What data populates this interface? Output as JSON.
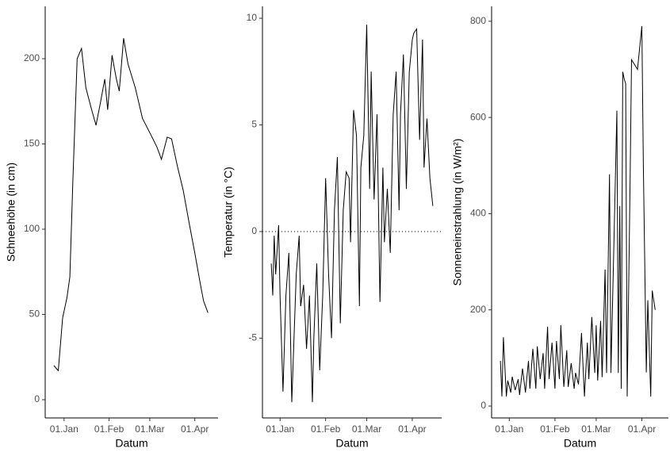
{
  "chart_data": [
    {
      "type": "line",
      "x_label": "Datum",
      "y_label": "Schneehöhe (in cm)",
      "color": "#000000",
      "xlim": [
        "12-19",
        "04-17"
      ],
      "xticks": [
        {
          "value": "01-01",
          "label": "01.Jan"
        },
        {
          "value": "02-01",
          "label": "01.Feb"
        },
        {
          "value": "03-01",
          "label": "01.Mar"
        },
        {
          "value": "04-01",
          "label": "01.Apr"
        }
      ],
      "ylim": [
        -10.7,
        230.7
      ],
      "yticks": [
        0,
        50,
        100,
        150,
        200
      ],
      "x": [
        "12-25",
        "12-28",
        "12-31",
        "01-03",
        "01-05",
        "01-07",
        "01-10",
        "01-13",
        "01-16",
        "01-20",
        "01-23",
        "01-26",
        "01-29",
        "01-31",
        "02-03",
        "02-06",
        "02-08",
        "02-11",
        "02-14",
        "02-19",
        "02-24",
        "03-02",
        "03-06",
        "03-09",
        "03-13",
        "03-16",
        "03-20",
        "03-24",
        "03-28",
        "04-01",
        "04-05",
        "04-07",
        "04-10"
      ],
      "values": [
        20,
        17,
        48,
        60,
        72,
        127,
        200,
        206,
        183,
        170,
        161,
        174,
        188,
        170,
        202,
        188,
        181,
        212,
        197,
        183,
        165,
        155,
        148,
        141,
        154,
        153,
        137,
        123,
        104,
        86,
        67,
        58,
        51
      ]
    },
    {
      "type": "line",
      "x_label": "Datum",
      "y_label": "Temperatur (in °C)",
      "color": "#000000",
      "hline": 0,
      "xlim": [
        "12-20",
        "04-21"
      ],
      "xticks": [
        {
          "value": "01-01",
          "label": "01.Jan"
        },
        {
          "value": "02-01",
          "label": "01.Feb"
        },
        {
          "value": "03-01",
          "label": "01.Mar"
        },
        {
          "value": "04-01",
          "label": "01.Apr"
        }
      ],
      "ylim": [
        -8.74,
        10.56
      ],
      "yticks": [
        -5,
        0,
        5,
        10
      ],
      "x": [
        "12-26",
        "12-27",
        "12-28",
        "12-29",
        "12-31",
        "01-01",
        "01-03",
        "01-05",
        "01-07",
        "01-09",
        "01-12",
        "01-14",
        "01-15",
        "01-17",
        "01-19",
        "01-21",
        "01-23",
        "01-24",
        "01-26",
        "01-28",
        "01-30",
        "02-01",
        "02-03",
        "02-05",
        "02-07",
        "02-09",
        "02-11",
        "02-13",
        "02-15",
        "02-17",
        "02-18",
        "02-20",
        "02-22",
        "02-24",
        "02-25",
        "02-27",
        "03-01",
        "03-03",
        "03-04",
        "03-06",
        "03-08",
        "03-10",
        "03-12",
        "03-13",
        "03-15",
        "03-17",
        "03-19",
        "03-21",
        "03-23",
        "03-24",
        "03-26",
        "03-28",
        "03-30",
        "04-01",
        "04-02",
        "04-04",
        "04-06",
        "04-08",
        "04-09",
        "04-11",
        "04-13",
        "04-15"
      ],
      "values": [
        -1.5,
        -3,
        -0.2,
        -2,
        0.3,
        -3,
        -7.5,
        -3,
        -1,
        -8,
        -2,
        -0.2,
        -3.5,
        -2.5,
        -5.5,
        -3,
        -8,
        -5,
        -1.5,
        -6.5,
        -3,
        2.5,
        -2,
        -5,
        1,
        3.5,
        -4.3,
        1,
        2.8,
        2.5,
        -0.5,
        5.7,
        4.5,
        -3.5,
        3,
        4.5,
        9.7,
        2,
        7.5,
        1.5,
        5.5,
        -3.3,
        3,
        -0.5,
        2,
        -1,
        5.5,
        7.5,
        1,
        5.5,
        8.3,
        2,
        7.5,
        9,
        9.3,
        9.5,
        4.3,
        9,
        3,
        5.3,
        2.5,
        1.2
      ]
    },
    {
      "type": "line",
      "x_label": "Datum",
      "y_label": "Sonneneinstrahlung (in W/m²)",
      "color": "#000000",
      "xlim": [
        "12-20",
        "04-19"
      ],
      "xticks": [
        {
          "value": "01-01",
          "label": "01.Jan"
        },
        {
          "value": "02-01",
          "label": "01.Feb"
        },
        {
          "value": "03-01",
          "label": "01.Mar"
        },
        {
          "value": "04-01",
          "label": "01.Apr"
        }
      ],
      "ylim": [
        -24.7,
        831
      ],
      "yticks": [
        0,
        200,
        400,
        600,
        800
      ],
      "x": [
        "12-26",
        "12-27",
        "12-28",
        "12-30",
        "12-31",
        "01-02",
        "01-03",
        "01-05",
        "01-07",
        "01-08",
        "01-10",
        "01-12",
        "01-14",
        "01-15",
        "01-17",
        "01-19",
        "01-20",
        "01-22",
        "01-24",
        "01-25",
        "01-27",
        "01-28",
        "01-30",
        "02-01",
        "02-02",
        "02-04",
        "02-05",
        "02-07",
        "02-09",
        "02-10",
        "02-12",
        "02-14",
        "02-15",
        "02-17",
        "02-19",
        "02-21",
        "02-23",
        "02-24",
        "02-26",
        "02-28",
        "03-01",
        "03-02",
        "03-04",
        "03-05",
        "03-07",
        "03-08",
        "03-10",
        "03-11",
        "03-13",
        "03-15",
        "03-16",
        "03-17",
        "03-18",
        "03-19",
        "03-20",
        "03-21",
        "03-22",
        "03-24",
        "03-25",
        "03-27",
        "03-29",
        "04-01",
        "04-02",
        "04-04",
        "04-05",
        "04-07",
        "04-08",
        "04-10"
      ],
      "values": [
        94,
        20,
        143,
        20,
        53,
        28,
        61,
        33,
        56,
        23,
        78,
        28,
        94,
        36,
        119,
        36,
        124,
        56,
        110,
        36,
        165,
        56,
        132,
        36,
        135,
        56,
        168,
        40,
        116,
        40,
        89,
        36,
        69,
        45,
        152,
        20,
        132,
        56,
        185,
        69,
        168,
        53,
        177,
        60,
        284,
        69,
        482,
        69,
        333,
        614,
        69,
        416,
        36,
        695,
        680,
        670,
        20,
        470,
        720,
        710,
        700,
        790,
        500,
        70,
        220,
        20,
        240,
        200
      ]
    }
  ]
}
